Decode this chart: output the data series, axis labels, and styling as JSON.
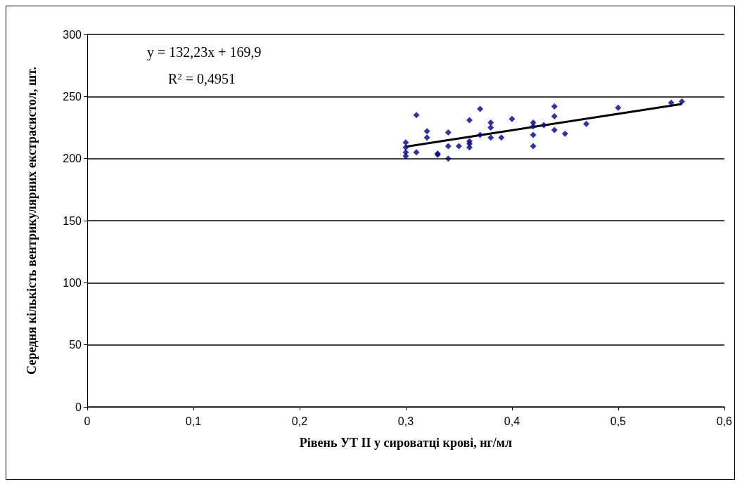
{
  "chart_data": {
    "type": "scatter",
    "xlabel": "Рівень УТ ІІ у сироватці крові, нг/мл",
    "ylabel": "Середня кількість вентрикулярних екстрасистол, шт.",
    "series": [
      {
        "color": "#000080",
        "marker": "diamond",
        "x": [
          0.3,
          0.3,
          0.3,
          0.3,
          0.31,
          0.31,
          0.32,
          0.32,
          0.33,
          0.33,
          0.34,
          0.34,
          0.34,
          0.35,
          0.36,
          0.36,
          0.36,
          0.36,
          0.37,
          0.37,
          0.38,
          0.38,
          0.38,
          0.39,
          0.4,
          0.42,
          0.42,
          0.42,
          0.42,
          0.43,
          0.44,
          0.44,
          0.44,
          0.45,
          0.47,
          0.5,
          0.55,
          0.56
        ],
        "values": [
          213,
          209,
          205,
          202,
          235,
          205,
          222,
          217,
          204,
          203,
          221,
          210,
          200,
          210,
          231,
          214,
          212,
          209,
          240,
          219,
          229,
          225,
          217,
          217,
          232,
          229,
          226,
          219,
          210,
          227,
          242,
          234,
          223,
          220,
          228,
          241,
          245,
          246
        ]
      },
      {
        "type": "line",
        "color": "#000000",
        "marker": "none",
        "x": [
          0.3,
          0.56
        ],
        "values": [
          209.6,
          244
        ]
      }
    ],
    "xlim": [
      0,
      0.6
    ],
    "xticks": [
      0,
      {
        "value": 0.1,
        "label": "0,1"
      },
      {
        "value": 0.2,
        "label": "0,2"
      },
      {
        "value": 0.3,
        "label": "0,3"
      },
      {
        "value": 0.4,
        "label": "0,4"
      },
      {
        "value": 0.5,
        "label": "0,5"
      },
      {
        "value": 0.6,
        "label": "0,6"
      }
    ],
    "ylim": [
      0,
      300
    ],
    "yticks": [
      0,
      50,
      100,
      150,
      200,
      250,
      300
    ],
    "grid": "y",
    "annotations": [
      "y = 132,23x + 169,9",
      "R$^{2}$ = 0,4951"
    ]
  }
}
